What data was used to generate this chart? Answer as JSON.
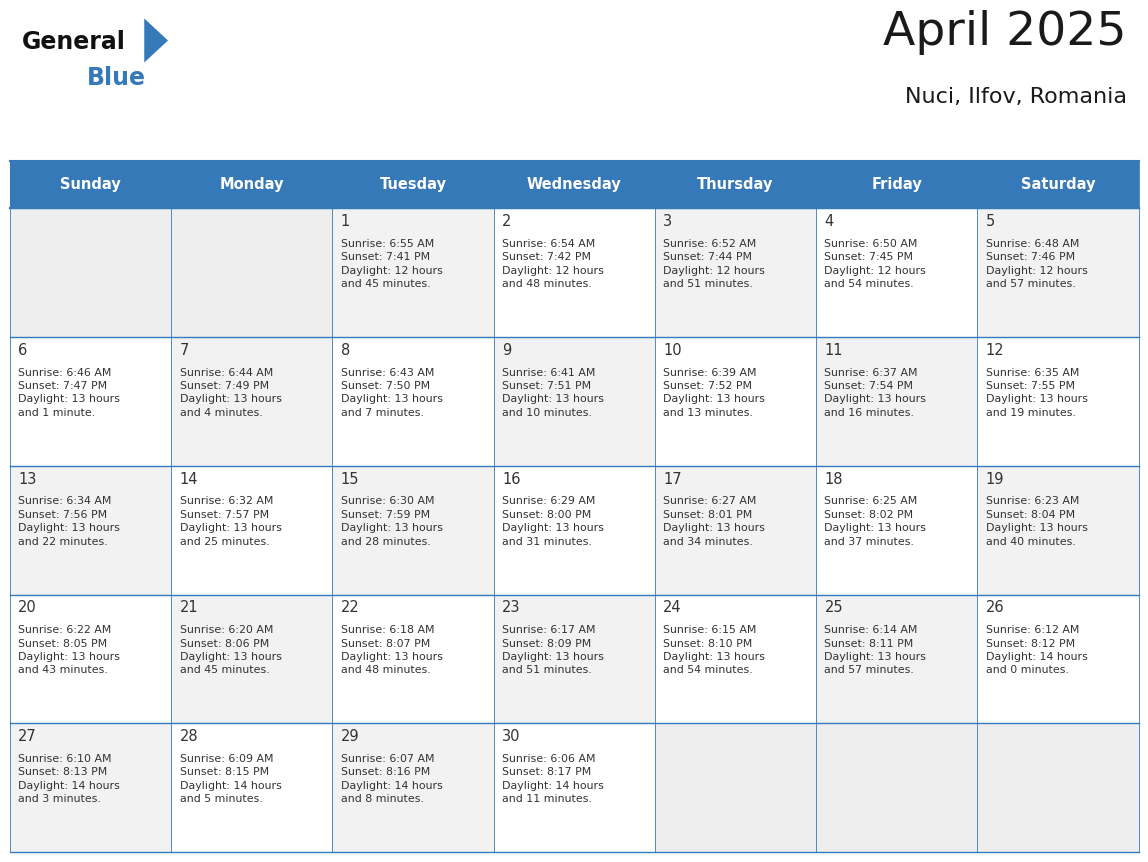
{
  "title": "April 2025",
  "subtitle": "Nuci, Ilfov, Romania",
  "header_bg_color": "#3579b8",
  "header_text_color": "#ffffff",
  "cell_bg_even": "#f2f2f2",
  "cell_bg_odd": "#ffffff",
  "cell_bg_empty": "#eeeeee",
  "day_number_color": "#333333",
  "cell_text_color": "#333333",
  "grid_line_color": "#3579b8",
  "logo_general_color": "#111111",
  "logo_blue_color": "#3579b8",
  "logo_triangle_color": "#3579b8",
  "title_color": "#1a1a1a",
  "subtitle_color": "#1a1a1a",
  "days_of_week": [
    "Sunday",
    "Monday",
    "Tuesday",
    "Wednesday",
    "Thursday",
    "Friday",
    "Saturday"
  ],
  "weeks": [
    [
      {
        "day": null,
        "sunrise": null,
        "sunset": null,
        "daylight": null
      },
      {
        "day": null,
        "sunrise": null,
        "sunset": null,
        "daylight": null
      },
      {
        "day": 1,
        "sunrise": "6:55 AM",
        "sunset": "7:41 PM",
        "daylight": "12 hours\nand 45 minutes."
      },
      {
        "day": 2,
        "sunrise": "6:54 AM",
        "sunset": "7:42 PM",
        "daylight": "12 hours\nand 48 minutes."
      },
      {
        "day": 3,
        "sunrise": "6:52 AM",
        "sunset": "7:44 PM",
        "daylight": "12 hours\nand 51 minutes."
      },
      {
        "day": 4,
        "sunrise": "6:50 AM",
        "sunset": "7:45 PM",
        "daylight": "12 hours\nand 54 minutes."
      },
      {
        "day": 5,
        "sunrise": "6:48 AM",
        "sunset": "7:46 PM",
        "daylight": "12 hours\nand 57 minutes."
      }
    ],
    [
      {
        "day": 6,
        "sunrise": "6:46 AM",
        "sunset": "7:47 PM",
        "daylight": "13 hours\nand 1 minute."
      },
      {
        "day": 7,
        "sunrise": "6:44 AM",
        "sunset": "7:49 PM",
        "daylight": "13 hours\nand 4 minutes."
      },
      {
        "day": 8,
        "sunrise": "6:43 AM",
        "sunset": "7:50 PM",
        "daylight": "13 hours\nand 7 minutes."
      },
      {
        "day": 9,
        "sunrise": "6:41 AM",
        "sunset": "7:51 PM",
        "daylight": "13 hours\nand 10 minutes."
      },
      {
        "day": 10,
        "sunrise": "6:39 AM",
        "sunset": "7:52 PM",
        "daylight": "13 hours\nand 13 minutes."
      },
      {
        "day": 11,
        "sunrise": "6:37 AM",
        "sunset": "7:54 PM",
        "daylight": "13 hours\nand 16 minutes."
      },
      {
        "day": 12,
        "sunrise": "6:35 AM",
        "sunset": "7:55 PM",
        "daylight": "13 hours\nand 19 minutes."
      }
    ],
    [
      {
        "day": 13,
        "sunrise": "6:34 AM",
        "sunset": "7:56 PM",
        "daylight": "13 hours\nand 22 minutes."
      },
      {
        "day": 14,
        "sunrise": "6:32 AM",
        "sunset": "7:57 PM",
        "daylight": "13 hours\nand 25 minutes."
      },
      {
        "day": 15,
        "sunrise": "6:30 AM",
        "sunset": "7:59 PM",
        "daylight": "13 hours\nand 28 minutes."
      },
      {
        "day": 16,
        "sunrise": "6:29 AM",
        "sunset": "8:00 PM",
        "daylight": "13 hours\nand 31 minutes."
      },
      {
        "day": 17,
        "sunrise": "6:27 AM",
        "sunset": "8:01 PM",
        "daylight": "13 hours\nand 34 minutes."
      },
      {
        "day": 18,
        "sunrise": "6:25 AM",
        "sunset": "8:02 PM",
        "daylight": "13 hours\nand 37 minutes."
      },
      {
        "day": 19,
        "sunrise": "6:23 AM",
        "sunset": "8:04 PM",
        "daylight": "13 hours\nand 40 minutes."
      }
    ],
    [
      {
        "day": 20,
        "sunrise": "6:22 AM",
        "sunset": "8:05 PM",
        "daylight": "13 hours\nand 43 minutes."
      },
      {
        "day": 21,
        "sunrise": "6:20 AM",
        "sunset": "8:06 PM",
        "daylight": "13 hours\nand 45 minutes."
      },
      {
        "day": 22,
        "sunrise": "6:18 AM",
        "sunset": "8:07 PM",
        "daylight": "13 hours\nand 48 minutes."
      },
      {
        "day": 23,
        "sunrise": "6:17 AM",
        "sunset": "8:09 PM",
        "daylight": "13 hours\nand 51 minutes."
      },
      {
        "day": 24,
        "sunrise": "6:15 AM",
        "sunset": "8:10 PM",
        "daylight": "13 hours\nand 54 minutes."
      },
      {
        "day": 25,
        "sunrise": "6:14 AM",
        "sunset": "8:11 PM",
        "daylight": "13 hours\nand 57 minutes."
      },
      {
        "day": 26,
        "sunrise": "6:12 AM",
        "sunset": "8:12 PM",
        "daylight": "14 hours\nand 0 minutes."
      }
    ],
    [
      {
        "day": 27,
        "sunrise": "6:10 AM",
        "sunset": "8:13 PM",
        "daylight": "14 hours\nand 3 minutes."
      },
      {
        "day": 28,
        "sunrise": "6:09 AM",
        "sunset": "8:15 PM",
        "daylight": "14 hours\nand 5 minutes."
      },
      {
        "day": 29,
        "sunrise": "6:07 AM",
        "sunset": "8:16 PM",
        "daylight": "14 hours\nand 8 minutes."
      },
      {
        "day": 30,
        "sunrise": "6:06 AM",
        "sunset": "8:17 PM",
        "daylight": "14 hours\nand 11 minutes."
      },
      {
        "day": null,
        "sunrise": null,
        "sunset": null,
        "daylight": null
      },
      {
        "day": null,
        "sunrise": null,
        "sunset": null,
        "daylight": null
      },
      {
        "day": null,
        "sunrise": null,
        "sunset": null,
        "daylight": null
      }
    ]
  ]
}
